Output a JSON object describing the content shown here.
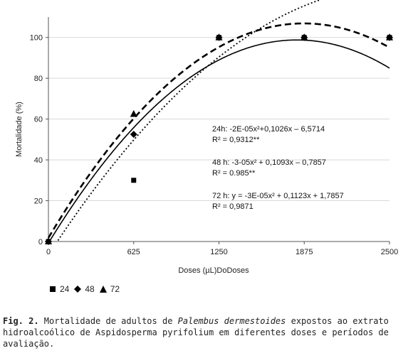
{
  "chart_data": {
    "type": "scatter",
    "xlabel": "Doses (µL)DoDoses",
    "ylabel": "Mortalidade (%)",
    "xlim": [
      0,
      2500
    ],
    "ylim": [
      0,
      110
    ],
    "xticks": [
      0,
      625,
      1250,
      1875,
      2500
    ],
    "yticks": [
      0,
      20,
      40,
      60,
      80,
      100
    ],
    "x_tick_labels": [
      "0",
      "625",
      "1250",
      "1875",
      "2500"
    ],
    "y_tick_labels": [
      "0",
      "20",
      "40",
      "60",
      "80",
      "100"
    ],
    "grid": "horizontal",
    "series": [
      {
        "name": "24",
        "marker": "square",
        "x": [
          0,
          625,
          1250,
          1875,
          2500
        ],
        "y": [
          0,
          30,
          100,
          100,
          100
        ],
        "fit_line": "dotted",
        "fit": {
          "a": -2e-05,
          "b": 0.1026,
          "c": -6.5714
        }
      },
      {
        "name": "48",
        "marker": "diamond",
        "x": [
          0,
          625,
          1250,
          1875,
          2500
        ],
        "y": [
          0,
          52.5,
          100,
          100,
          100
        ],
        "fit_line": "solid",
        "fit": {
          "a": -3e-05,
          "b": 0.1093,
          "c": -0.7857
        }
      },
      {
        "name": "72",
        "marker": "triangle",
        "x": [
          0,
          625,
          1250,
          1875,
          2500
        ],
        "y": [
          0,
          62.5,
          100,
          100,
          100
        ],
        "fit_line": "dashed",
        "fit": {
          "a": -3e-05,
          "b": 0.1123,
          "c": 1.7857
        }
      }
    ],
    "annotations": [
      "24h: -2E-05x²+0,1026x – 6,5714",
      "R² = 0,9312**",
      "48 h: -3-05x² + 0,1093x – 0,7857",
      "R² = 0.985**",
      "72 h: y = -3E-05x² + 0,1123x + 1,7857",
      "R² = 0,9871"
    ],
    "legend_position": "bottom-left"
  },
  "caption": {
    "label": "Fig. 2.",
    "text_before": " Mortalidade de adultos de ",
    "species": "Palembus dermestoides",
    "text_after": " expostos ao extrato hidroalcoólico de Aspidosperma pyrifolium em diferentes doses e períodos de avaliação."
  }
}
